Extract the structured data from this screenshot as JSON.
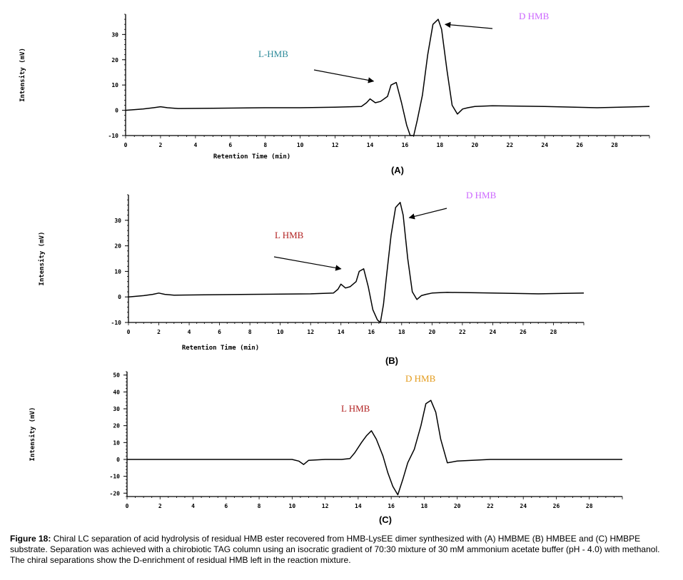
{
  "caption": {
    "lead": "Figure 18:",
    "text": " Chiral LC separation of acid hydrolysis of residual HMB ester recovered from HMB-LysEE dimer synthesized with (A) HMBME (B) HMBEE and (C) HMBPE substrate. Separation was achieved with a chirobiotic TAG column using an isocratic gradient of 70:30 mixture of 30 mM ammonium acetate buffer (pH - 4.0) with methanol. The chiral separations show the D-enrichment of residual HMB left in the reaction mixture."
  },
  "colors": {
    "line": "#000000",
    "teal": "#2e8b9a",
    "violet": "#cc66ff",
    "crimson": "#b22222",
    "orange": "#e39a1a"
  },
  "chart_data": [
    {
      "type": "line",
      "panel_label": "(A)",
      "xlabel": "Retention Time (min)",
      "ylabel": "Intensity (mV)",
      "xlim": [
        0,
        30
      ],
      "ylim": [
        -10,
        38
      ],
      "xticks": [
        0,
        2,
        4,
        6,
        8,
        10,
        12,
        14,
        16,
        18,
        20,
        22,
        24,
        26,
        28
      ],
      "yticks": [
        -10,
        0,
        10,
        20,
        30
      ],
      "x": [
        0,
        1,
        1.6,
        2,
        2.4,
        3,
        5,
        8,
        10,
        12,
        13.5,
        13.8,
        14,
        14.3,
        14.6,
        15,
        15.2,
        15.5,
        15.8,
        16.1,
        16.3,
        16.5,
        16.7,
        17,
        17.3,
        17.6,
        17.9,
        18.1,
        18.4,
        18.7,
        19,
        19.3,
        19.6,
        20,
        21,
        24,
        27,
        30
      ],
      "y": [
        0,
        0.5,
        1,
        1.4,
        1,
        0.7,
        0.8,
        1,
        1,
        1.2,
        1.5,
        3,
        4.5,
        3,
        3.5,
        5.5,
        10,
        11,
        3,
        -6,
        -10,
        -10,
        -4,
        6,
        22,
        34,
        36,
        32,
        16,
        2,
        -1.5,
        0.5,
        1,
        1.5,
        1.8,
        1.5,
        1,
        1.5
      ],
      "annotations": [
        {
          "text": "L-HMB",
          "color": "teal",
          "arrow_to": [
            14.2,
            11.5
          ]
        },
        {
          "text": "D HMB",
          "color": "violet",
          "arrow_to": [
            18.3,
            34
          ]
        }
      ]
    },
    {
      "type": "line",
      "panel_label": "(B)",
      "xlabel": "Retention Time (min)",
      "ylabel": "Intensity (mV)",
      "xlim": [
        0,
        30
      ],
      "ylim": [
        -10,
        40
      ],
      "xticks": [
        0,
        2,
        4,
        6,
        8,
        10,
        12,
        14,
        16,
        18,
        20,
        22,
        24,
        26,
        28
      ],
      "yticks": [
        -10,
        0,
        10,
        20,
        30
      ],
      "x": [
        0,
        1,
        1.6,
        2,
        2.4,
        3,
        5,
        8,
        10,
        12,
        13.5,
        13.8,
        14,
        14.3,
        14.6,
        15,
        15.2,
        15.5,
        15.8,
        16.1,
        16.4,
        16.6,
        16.8,
        17,
        17.3,
        17.6,
        17.9,
        18.1,
        18.4,
        18.7,
        19,
        19.3,
        19.6,
        20,
        21,
        24,
        27,
        30
      ],
      "y": [
        0,
        0.5,
        1,
        1.5,
        1,
        0.7,
        0.8,
        1,
        1.1,
        1.2,
        1.5,
        3,
        5,
        3.5,
        4,
        6,
        10,
        11,
        4,
        -5,
        -9,
        -10,
        -3,
        8,
        24,
        35,
        37,
        32,
        15,
        2,
        -1,
        0.5,
        1,
        1.5,
        1.8,
        1.5,
        1.2,
        1.5
      ],
      "annotations": [
        {
          "text": "L HMB",
          "color": "crimson",
          "arrow_to": [
            14,
            11
          ]
        },
        {
          "text": "D HMB",
          "color": "violet",
          "arrow_to": [
            18.5,
            31
          ]
        }
      ]
    },
    {
      "type": "line",
      "panel_label": "(C)",
      "xlabel": "",
      "ylabel": "Intensity (mV)",
      "xlim": [
        0,
        30
      ],
      "ylim": [
        -22,
        52
      ],
      "xticks": [
        0,
        2,
        4,
        6,
        8,
        10,
        12,
        14,
        16,
        18,
        20,
        22,
        24,
        26,
        28
      ],
      "yticks": [
        -20,
        -10,
        0,
        10,
        20,
        30,
        40,
        50
      ],
      "x": [
        0,
        2,
        4,
        6,
        8,
        10,
        10.4,
        10.7,
        11,
        12,
        13,
        13.5,
        13.8,
        14.2,
        14.5,
        14.8,
        15.1,
        15.5,
        15.8,
        16.1,
        16.4,
        16.7,
        17,
        17.4,
        17.8,
        18.1,
        18.4,
        18.7,
        19,
        19.4,
        20,
        22,
        24,
        26,
        28,
        30
      ],
      "y": [
        0,
        0,
        0,
        0,
        0,
        0,
        -1,
        -3,
        -0.5,
        0,
        0,
        0.5,
        4,
        10,
        14,
        17,
        12,
        2,
        -8,
        -16,
        -21,
        -12,
        -2,
        6,
        20,
        33,
        35,
        28,
        12,
        -2,
        -1,
        0,
        0,
        0,
        0,
        0
      ],
      "annotations": [
        {
          "text": "L HMB",
          "color": "crimson"
        },
        {
          "text": "D HMB",
          "color": "orange"
        }
      ]
    }
  ]
}
